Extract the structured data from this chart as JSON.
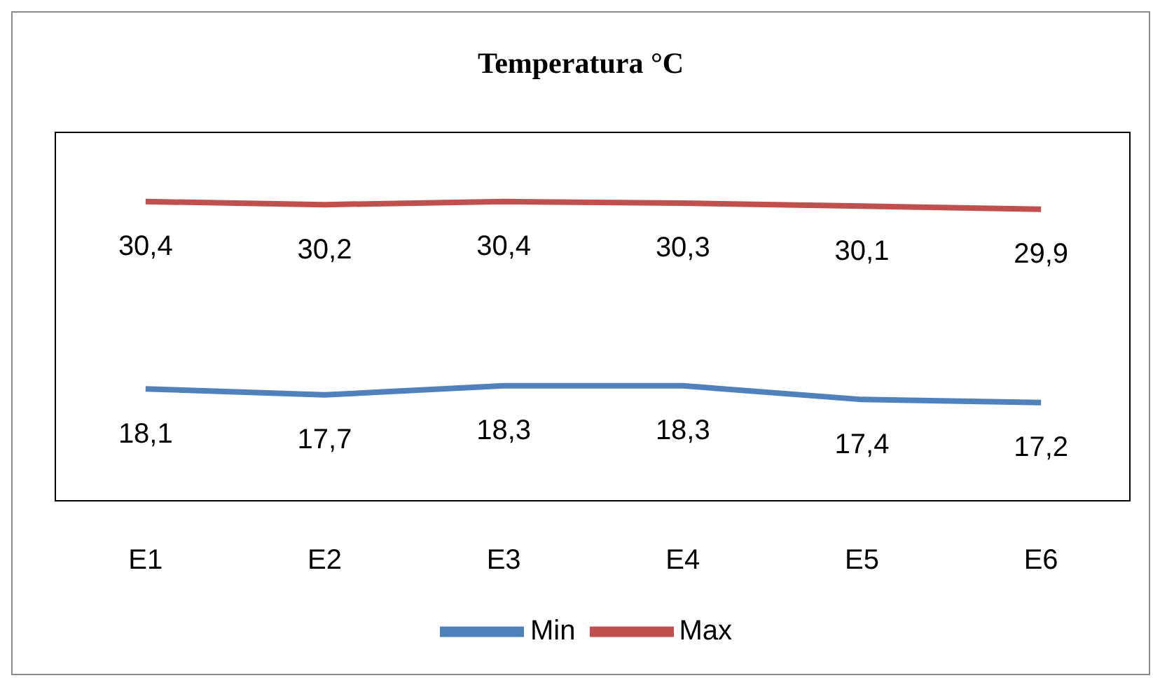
{
  "chart_data": {
    "type": "line",
    "title": "Temperatura °C",
    "categories": [
      "E1",
      "E2",
      "E3",
      "E4",
      "E5",
      "E6"
    ],
    "series": [
      {
        "name": "Min",
        "color": "#4f81bd",
        "values": [
          18.1,
          17.7,
          18.3,
          18.3,
          17.4,
          17.2
        ],
        "value_labels": [
          "18,1",
          "17,7",
          "18,3",
          "18,3",
          "17,4",
          "17,2"
        ]
      },
      {
        "name": "Max",
        "color": "#c0504d",
        "values": [
          30.4,
          30.2,
          30.4,
          30.3,
          30.1,
          29.9
        ],
        "value_labels": [
          "30,4",
          "30,2",
          "30,4",
          "30,3",
          "30,1",
          "29,9"
        ]
      }
    ],
    "tick_labels": "x",
    "grid": false,
    "legend": "bottom",
    "marker": "none",
    "line_style": "solid"
  }
}
